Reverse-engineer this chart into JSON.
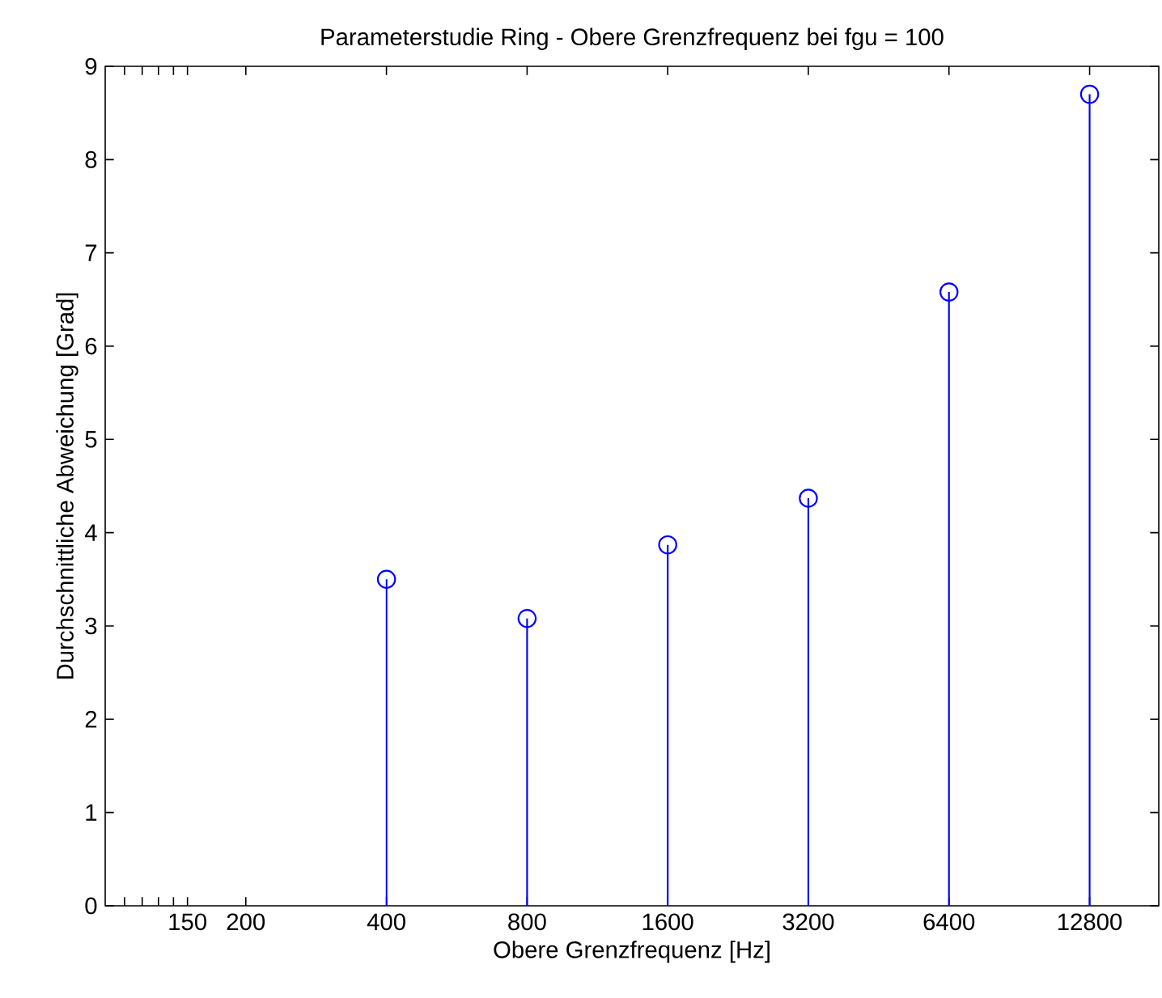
{
  "chart_data": {
    "type": "lollipop",
    "title": "Parameterstudie Ring - Obere Grenzfrequenz bei fgu = 100",
    "xlabel": "Obere Grenzfrequenz [Hz]",
    "ylabel": "Durchschnittliche Abweichung [Grad]",
    "log": "x",
    "x": [
      400,
      800,
      1600,
      3200,
      6400,
      12800
    ],
    "values": [
      3.5,
      3.08,
      3.87,
      4.37,
      6.58,
      8.7
    ],
    "color": "#0000ff",
    "marker": "circle",
    "xlim": [
      100,
      18000
    ],
    "xticks": [
      {
        "value": 110,
        "label": null
      },
      {
        "value": 120,
        "label": null
      },
      {
        "value": 130,
        "label": null
      },
      {
        "value": 140,
        "label": null
      },
      150,
      200,
      400,
      800,
      1600,
      3200,
      6400,
      12800
    ],
    "ylim": [
      0,
      9
    ],
    "yticks": [
      0,
      1,
      2,
      3,
      4,
      5,
      6,
      7,
      8,
      9
    ]
  }
}
